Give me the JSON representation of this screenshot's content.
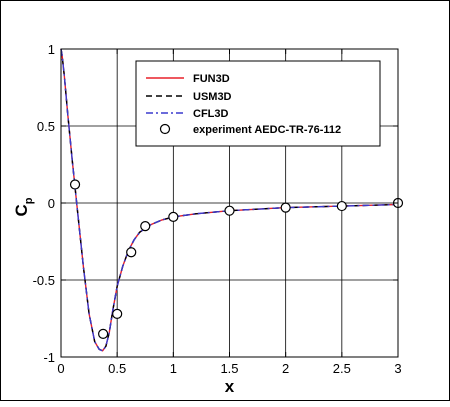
{
  "chart_data": {
    "type": "line",
    "xlabel": "x",
    "ylabel": "C",
    "ylabel_sub": "p",
    "xlim": [
      0,
      3
    ],
    "ylim": [
      -1,
      1
    ],
    "xticks": [
      0,
      0.5,
      1,
      1.5,
      2,
      2.5,
      3
    ],
    "yticks": [
      1,
      0.5,
      0,
      -0.5,
      -1
    ],
    "xtick_labels": [
      "0",
      "0.5",
      "1",
      "1.5",
      "2",
      "2.5",
      "3"
    ],
    "ytick_labels": [
      "1",
      "0.5",
      "0",
      "-0.5",
      "-1"
    ],
    "grid": true,
    "legend_position": "top-right",
    "series": [
      {
        "name": "FUN3D",
        "style": "solid",
        "color": "#e8202a",
        "x": [
          0.0,
          0.01,
          0.03,
          0.06,
          0.1,
          0.15,
          0.2,
          0.25,
          0.3,
          0.34,
          0.37,
          0.4,
          0.43,
          0.46,
          0.5,
          0.55,
          0.6,
          0.65,
          0.7,
          0.8,
          0.9,
          1.0,
          1.2,
          1.5,
          2.0,
          2.5,
          3.0
        ],
        "y": [
          1.0,
          0.96,
          0.82,
          0.58,
          0.28,
          -0.07,
          -0.42,
          -0.72,
          -0.9,
          -0.95,
          -0.96,
          -0.93,
          -0.84,
          -0.7,
          -0.54,
          -0.41,
          -0.31,
          -0.24,
          -0.19,
          -0.14,
          -0.11,
          -0.09,
          -0.07,
          -0.05,
          -0.03,
          -0.02,
          -0.01
        ]
      },
      {
        "name": "USM3D",
        "style": "dashed",
        "color": "#000000",
        "x": [
          0.0,
          0.01,
          0.03,
          0.06,
          0.1,
          0.15,
          0.2,
          0.25,
          0.3,
          0.34,
          0.37,
          0.4,
          0.43,
          0.46,
          0.5,
          0.55,
          0.6,
          0.65,
          0.7,
          0.8,
          0.9,
          1.0,
          1.2,
          1.5,
          2.0,
          2.5,
          3.0
        ],
        "y": [
          1.0,
          0.96,
          0.82,
          0.58,
          0.28,
          -0.07,
          -0.42,
          -0.72,
          -0.9,
          -0.95,
          -0.96,
          -0.93,
          -0.84,
          -0.7,
          -0.54,
          -0.41,
          -0.31,
          -0.24,
          -0.19,
          -0.14,
          -0.11,
          -0.09,
          -0.07,
          -0.05,
          -0.03,
          -0.02,
          -0.01
        ]
      },
      {
        "name": "CFL3D",
        "style": "dashdot",
        "color": "#3a3acd",
        "x": [
          0.0,
          0.01,
          0.03,
          0.06,
          0.1,
          0.15,
          0.2,
          0.25,
          0.3,
          0.34,
          0.37,
          0.4,
          0.43,
          0.46,
          0.5,
          0.55,
          0.6,
          0.65,
          0.7,
          0.8,
          0.9,
          1.0,
          1.2,
          1.5,
          2.0,
          2.5,
          3.0
        ],
        "y": [
          1.0,
          0.96,
          0.82,
          0.58,
          0.28,
          -0.07,
          -0.42,
          -0.72,
          -0.9,
          -0.95,
          -0.96,
          -0.93,
          -0.84,
          -0.7,
          -0.54,
          -0.41,
          -0.31,
          -0.24,
          -0.19,
          -0.14,
          -0.11,
          -0.09,
          -0.07,
          -0.05,
          -0.03,
          -0.02,
          -0.01
        ]
      }
    ],
    "scatter": {
      "name": "experiment AEDC-TR-76-112",
      "marker": "open-circle",
      "x": [
        0.125,
        0.375,
        0.5,
        0.625,
        0.75,
        1.0,
        1.5,
        2.0,
        2.5,
        3.0
      ],
      "y": [
        0.12,
        -0.85,
        -0.72,
        -0.32,
        -0.15,
        -0.09,
        -0.05,
        -0.03,
        -0.02,
        0.0
      ]
    }
  }
}
